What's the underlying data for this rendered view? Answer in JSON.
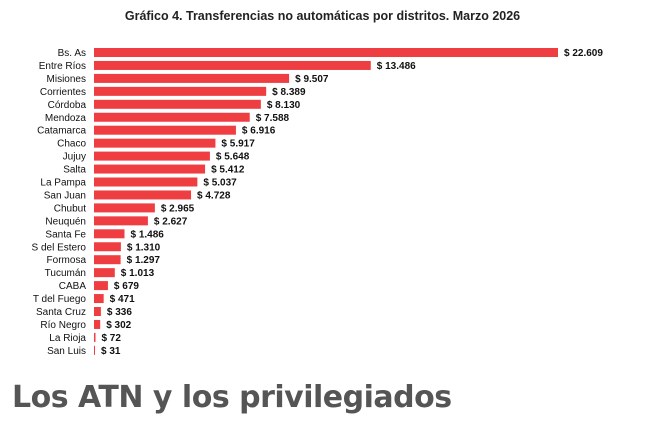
{
  "chart_data": {
    "type": "bar",
    "orientation": "horizontal",
    "title": "Gráfico 4. Transferencias no automáticas por distritos. Marzo 2026",
    "value_prefix": "$ ",
    "categories": [
      "Bs. As",
      "Entre Ríos",
      "Misiones",
      "Corrientes",
      "Córdoba",
      "Mendoza",
      "Catamarca",
      "Chaco",
      "Jujuy",
      "Salta",
      "La Pampa",
      "San Juan",
      "Chubut",
      "Neuquén",
      "Santa Fe",
      "S del Estero",
      "Formosa",
      "Tucumán",
      "CABA",
      "T del Fuego",
      "Santa Cruz",
      "Río Negro",
      "La Rioja",
      "San Luis"
    ],
    "values": [
      22609,
      13486,
      9507,
      8389,
      8130,
      7588,
      6916,
      5917,
      5648,
      5412,
      5037,
      4728,
      2965,
      2627,
      1486,
      1310,
      1297,
      1013,
      679,
      471,
      336,
      302,
      72,
      31
    ],
    "value_labels": [
      "$ 22.609",
      "$ 13.486",
      "$ 9.507",
      "$ 8.389",
      "$ 8.130",
      "$ 7.588",
      "$ 6.916",
      "$ 5.917",
      "$ 5.648",
      "$ 5.412",
      "$ 5.037",
      "$ 4.728",
      "$ 2.965",
      "$ 2.627",
      "$ 1.486",
      "$ 1.310",
      "$ 1.297",
      "$ 1.013",
      "$ 679",
      "$ 471",
      "$ 336",
      "$ 302",
      "$ 72",
      "$ 31"
    ],
    "bar_color": "#ee3e42",
    "grid": false,
    "legend": "none"
  },
  "article": {
    "headline": "Los ATN y los privilegiados"
  }
}
